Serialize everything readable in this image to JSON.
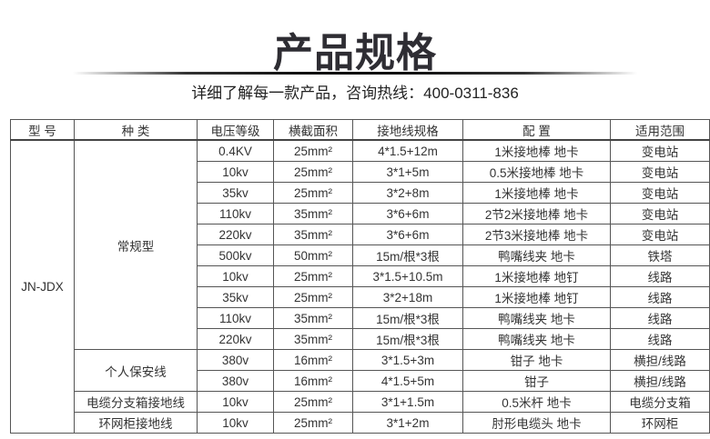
{
  "title": "产品规格",
  "subtitle": "详细了解每一款产品，咨询热线：400-0311-836",
  "table": {
    "headers": [
      "型 号",
      "种 类",
      "电压等级",
      "横截面积",
      "接地线规格",
      "配 置",
      "适用范围"
    ],
    "model": "JN-JDX",
    "groups": [
      {
        "type": "常规型",
        "rows": [
          [
            "0.4KV",
            "25mm²",
            "4*1.5+12m",
            "1米接地棒 地卡",
            "变电站"
          ],
          [
            "10kv",
            "25mm²",
            "3*1+5m",
            "0.5米接地棒 地卡",
            "变电站"
          ],
          [
            "35kv",
            "25mm²",
            "3*2+8m",
            "1米接地棒 地卡",
            "变电站"
          ],
          [
            "110kv",
            "35mm²",
            "3*6+6m",
            "2节2米接地棒 地卡",
            "变电站"
          ],
          [
            "220kv",
            "35mm²",
            "3*6+6m",
            "2节3米接地棒 地卡",
            "变电站"
          ],
          [
            "500kv",
            "50mm²",
            "15m/根*3根",
            "鸭嘴线夹 地卡",
            "铁塔"
          ],
          [
            "10kv",
            "25mm²",
            "3*1.5+10.5m",
            "1米接地棒 地钉",
            "线路"
          ],
          [
            "35kv",
            "25mm²",
            "3*2+18m",
            "1米接地棒 地钉",
            "线路"
          ],
          [
            "110kv",
            "35mm²",
            "15m/根*3根",
            "鸭嘴线夹 地卡",
            "线路"
          ],
          [
            "220kv",
            "35mm²",
            "15m/根*3根",
            "鸭嘴线夹 地卡",
            "线路"
          ]
        ]
      },
      {
        "type": "个人保安线",
        "rows": [
          [
            "380v",
            "16mm²",
            "3*1.5+3m",
            "钳子 地卡",
            "横担/线路"
          ],
          [
            "380v",
            "16mm²",
            "4*1.5+5m",
            "钳子",
            "横担/线路"
          ]
        ]
      },
      {
        "type": "电缆分支箱接地线",
        "rows": [
          [
            "10kv",
            "25mm²",
            "3*1+1.5m",
            "0.5米杆 地卡",
            "电缆分支箱"
          ]
        ]
      },
      {
        "type": "环网柜接地线",
        "rows": [
          [
            "10kv",
            "25mm²",
            "3*1+2m",
            "肘形电缆头 地卡",
            "环网柜"
          ]
        ]
      }
    ]
  }
}
